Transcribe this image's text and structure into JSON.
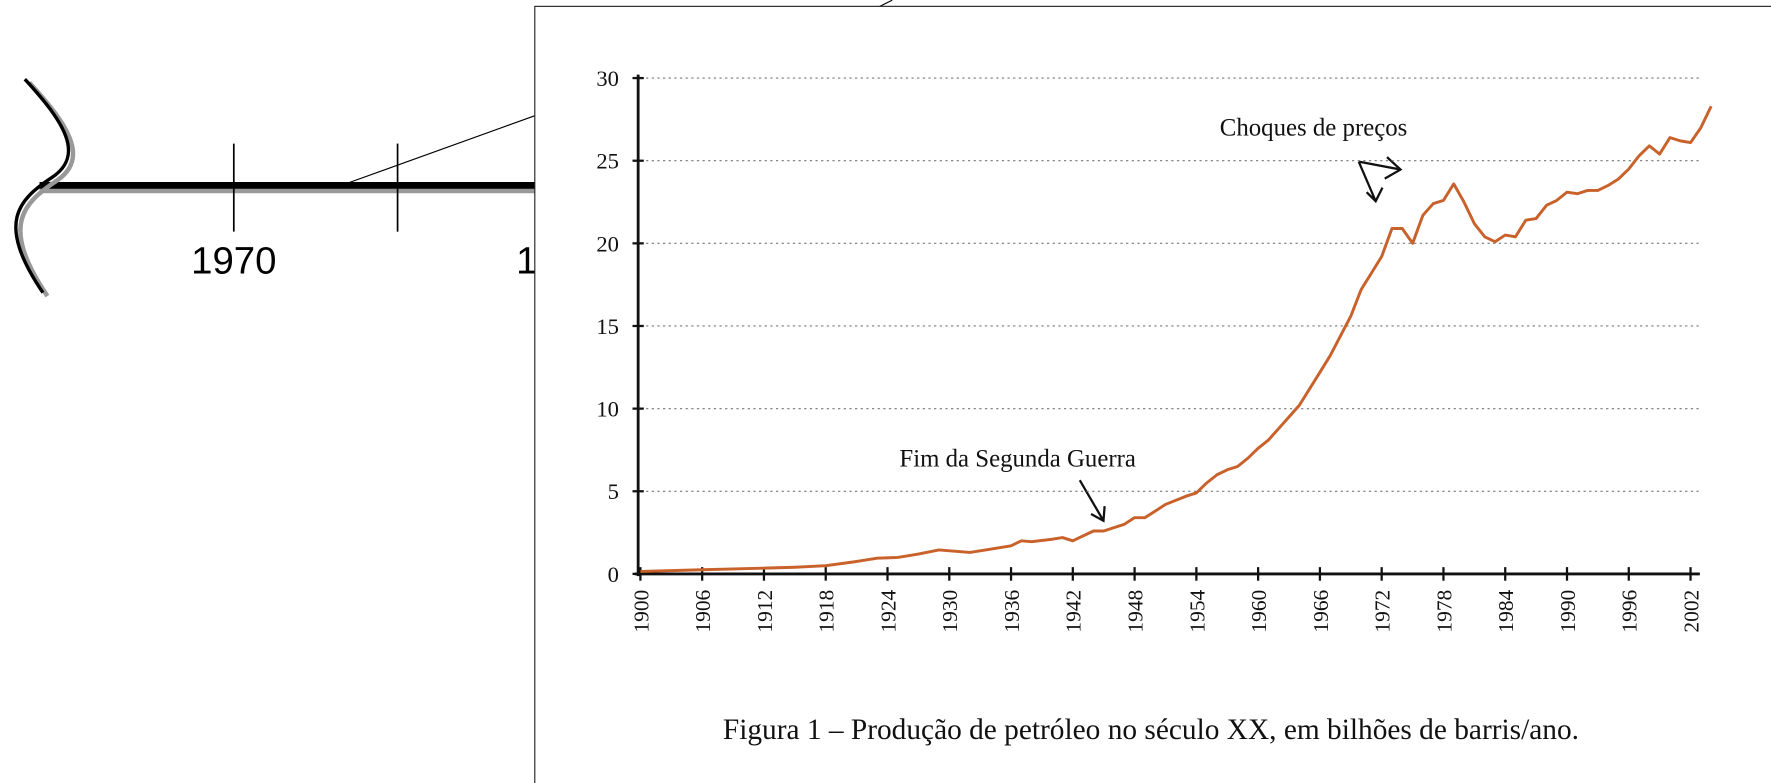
{
  "timeline": {
    "labels": [
      "1970",
      "1"
    ]
  },
  "chart_data": {
    "type": "line",
    "caption": "Figura 1 – Produção de petróleo no século XX, em bilhões de barris/ano.",
    "annotations": [
      "Choques de preços",
      "Fim da Segunda Guerra"
    ],
    "color": "#c8612a",
    "x": [
      1900,
      1903,
      1906,
      1909,
      1912,
      1915,
      1918,
      1921,
      1923,
      1925,
      1927,
      1929,
      1932,
      1934,
      1936,
      1937,
      1938,
      1940,
      1941,
      1942,
      1944,
      1945,
      1946,
      1947,
      1948,
      1949,
      1950,
      1951,
      1953,
      1954,
      1955,
      1956,
      1957,
      1958,
      1959,
      1960,
      1961,
      1962,
      1963,
      1964,
      1965,
      1966,
      1967,
      1968,
      1969,
      1970,
      1971,
      1972,
      1973,
      1974,
      1975,
      1976,
      1977,
      1978,
      1979,
      1980,
      1981,
      1982,
      1983,
      1984,
      1985,
      1986,
      1987,
      1988,
      1989,
      1990,
      1991,
      1992,
      1993,
      1994,
      1995,
      1996,
      1997,
      1998,
      1999,
      2000,
      2001,
      2002,
      2003,
      2004
    ],
    "values": [
      0.15,
      0.2,
      0.25,
      0.3,
      0.35,
      0.4,
      0.5,
      0.75,
      0.95,
      1.0,
      1.2,
      1.45,
      1.3,
      1.5,
      1.7,
      2.0,
      1.95,
      2.1,
      2.2,
      2.0,
      2.6,
      2.6,
      2.8,
      3.0,
      3.4,
      3.4,
      3.8,
      4.2,
      4.7,
      4.9,
      5.5,
      6.0,
      6.3,
      6.5,
      7.0,
      7.6,
      8.1,
      8.8,
      9.5,
      10.2,
      11.2,
      12.2,
      13.2,
      14.4,
      15.6,
      17.2,
      18.2,
      19.2,
      20.9,
      20.9,
      20.0,
      21.7,
      22.4,
      22.6,
      23.6,
      22.5,
      21.2,
      20.4,
      20.1,
      20.5,
      20.4,
      21.4,
      21.5,
      22.3,
      22.6,
      23.1,
      23.0,
      23.2,
      23.2,
      23.5,
      23.9,
      24.5,
      25.3,
      25.9,
      25.4,
      26.4,
      26.2,
      26.1,
      27.0,
      28.3
    ],
    "xlim": [
      1900,
      2004
    ],
    "xticks": [
      1900,
      1906,
      1912,
      1918,
      1924,
      1930,
      1936,
      1942,
      1948,
      1954,
      1960,
      1966,
      1972,
      1978,
      1984,
      1990,
      1996,
      2002
    ],
    "ylim": [
      0,
      30
    ],
    "yticks": [
      0,
      5,
      10,
      15,
      20,
      25,
      30
    ],
    "grid": true
  }
}
